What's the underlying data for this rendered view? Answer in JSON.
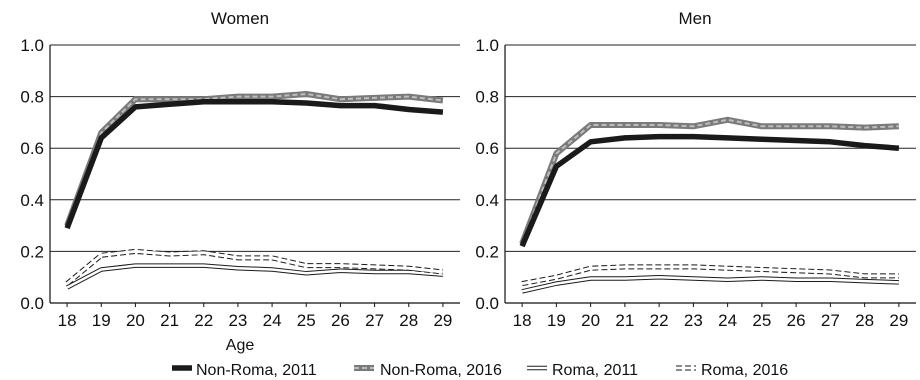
{
  "chart_data": [
    {
      "type": "line",
      "title": "Women",
      "xlabel": "Age",
      "ylabel": "",
      "x": [
        18,
        19,
        20,
        21,
        22,
        23,
        24,
        25,
        26,
        27,
        28,
        29
      ],
      "ylim": [
        0,
        1
      ],
      "yticks": [
        "0.0",
        "0.2",
        "0.4",
        "0.6",
        "0.8",
        "1.0"
      ],
      "grid": true,
      "series": [
        {
          "name": "Non-Roma, 2011",
          "style": "thick-black",
          "values": [
            0.29,
            0.64,
            0.76,
            0.77,
            0.78,
            0.78,
            0.78,
            0.775,
            0.765,
            0.765,
            0.75,
            0.74
          ]
        },
        {
          "name": "Non-Roma, 2016",
          "style": "thick-gray-dashed",
          "values": [
            0.3,
            0.66,
            0.79,
            0.79,
            0.79,
            0.8,
            0.8,
            0.81,
            0.79,
            0.795,
            0.8,
            0.785
          ]
        },
        {
          "name": "Roma, 2011",
          "style": "hollow",
          "values": [
            0.06,
            0.13,
            0.145,
            0.145,
            0.145,
            0.135,
            0.13,
            0.115,
            0.125,
            0.12,
            0.12,
            0.11
          ]
        },
        {
          "name": "Roma, 2016",
          "style": "hollow-dashed",
          "values": [
            0.075,
            0.185,
            0.2,
            0.19,
            0.195,
            0.175,
            0.175,
            0.145,
            0.145,
            0.14,
            0.135,
            0.12
          ]
        }
      ]
    },
    {
      "type": "line",
      "title": "Men",
      "xlabel": "",
      "ylabel": "",
      "x": [
        18,
        19,
        20,
        21,
        22,
        23,
        24,
        25,
        26,
        27,
        28,
        29
      ],
      "ylim": [
        0,
        1
      ],
      "yticks": [
        "0.0",
        "0.2",
        "0.4",
        "0.6",
        "0.8",
        "1.0"
      ],
      "grid": true,
      "series": [
        {
          "name": "Non-Roma, 2011",
          "style": "thick-black",
          "values": [
            0.22,
            0.53,
            0.625,
            0.64,
            0.645,
            0.645,
            0.64,
            0.635,
            0.63,
            0.625,
            0.61,
            0.6
          ]
        },
        {
          "name": "Non-Roma, 2016",
          "style": "thick-gray-dashed",
          "values": [
            0.23,
            0.58,
            0.69,
            0.69,
            0.69,
            0.685,
            0.71,
            0.685,
            0.685,
            0.685,
            0.68,
            0.685
          ]
        },
        {
          "name": "Roma, 2011",
          "style": "hollow",
          "values": [
            0.045,
            0.075,
            0.095,
            0.095,
            0.1,
            0.095,
            0.09,
            0.095,
            0.09,
            0.09,
            0.085,
            0.08
          ]
        },
        {
          "name": "Roma, 2016",
          "style": "hollow-dashed",
          "values": [
            0.075,
            0.1,
            0.135,
            0.14,
            0.14,
            0.14,
            0.135,
            0.13,
            0.125,
            0.12,
            0.105,
            0.105
          ]
        }
      ]
    }
  ],
  "legend": {
    "position": "bottom",
    "items": [
      {
        "label": "Non-Roma, 2011",
        "style": "thick-black"
      },
      {
        "label": "Non-Roma, 2016",
        "style": "thick-gray-dashed"
      },
      {
        "label": "Roma, 2011",
        "style": "hollow"
      },
      {
        "label": "Roma, 2016",
        "style": "hollow-dashed"
      }
    ]
  },
  "colors": {
    "black": "#1a1a1a",
    "gray": "#7a7a7a",
    "gray_dash": "#bdbdbd",
    "grid": "#222222",
    "hollow_fill": "#ffffff"
  }
}
